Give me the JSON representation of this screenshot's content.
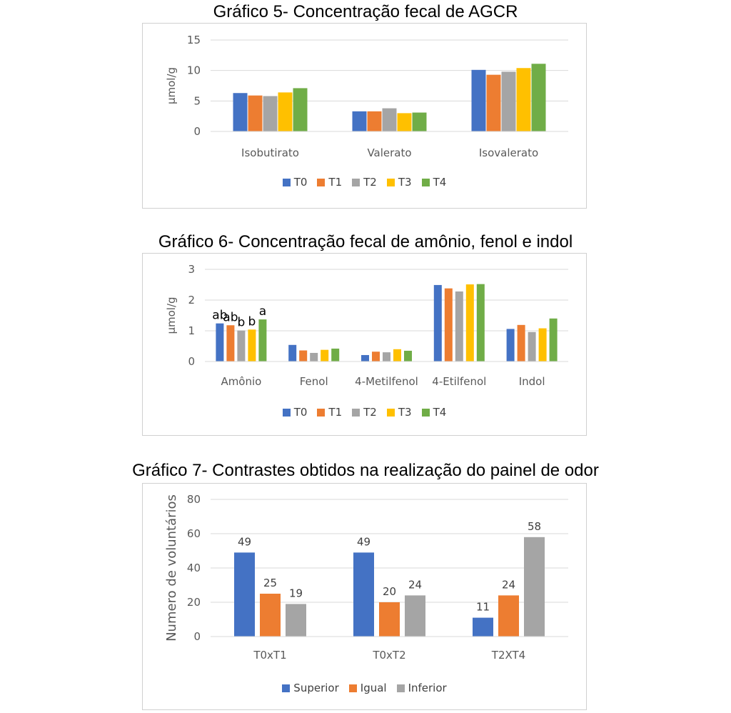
{
  "chart_data": [
    {
      "type": "bar",
      "title": "Gráfico 5- Concentração fecal de AGCR",
      "xlabel": "",
      "ylabel": "µmol/g",
      "ylim": [
        0,
        15
      ],
      "yticks": [
        0,
        5,
        10,
        15
      ],
      "grid": true,
      "legend_position": "bottom",
      "categories": [
        "Isobutirato",
        "Valerato",
        "Isovalerato"
      ],
      "series": [
        {
          "name": "T0",
          "color": "#4472C4",
          "values": [
            6.3,
            3.3,
            10.1
          ]
        },
        {
          "name": "T1",
          "color": "#ED7D31",
          "values": [
            5.9,
            3.3,
            9.3
          ]
        },
        {
          "name": "T2",
          "color": "#A5A5A5",
          "values": [
            5.8,
            3.8,
            9.8
          ]
        },
        {
          "name": "T3",
          "color": "#FFC000",
          "values": [
            6.4,
            3.0,
            10.4
          ]
        },
        {
          "name": "T4",
          "color": "#70AD47",
          "values": [
            7.1,
            3.1,
            11.1
          ]
        }
      ]
    },
    {
      "type": "bar",
      "title": "Gráfico 6- Concentração fecal de amônio, fenol e indol",
      "xlabel": "",
      "ylabel": "µmol/g",
      "ylim": [
        0,
        3
      ],
      "yticks": [
        0,
        1,
        2,
        3
      ],
      "grid": true,
      "legend_position": "bottom",
      "categories": [
        "Amônio",
        "Fenol",
        "4-Metilfenol",
        "4-Etilfenol",
        "Indol"
      ],
      "series": [
        {
          "name": "T0",
          "color": "#4472C4",
          "values": [
            1.24,
            0.54,
            0.21,
            2.49,
            1.06
          ]
        },
        {
          "name": "T1",
          "color": "#ED7D31",
          "values": [
            1.18,
            0.36,
            0.32,
            2.38,
            1.19
          ]
        },
        {
          "name": "T2",
          "color": "#A5A5A5",
          "values": [
            1.01,
            0.28,
            0.3,
            2.28,
            0.96
          ]
        },
        {
          "name": "T3",
          "color": "#FFC000",
          "values": [
            1.04,
            0.38,
            0.4,
            2.51,
            1.08
          ]
        },
        {
          "name": "T4",
          "color": "#70AD47",
          "values": [
            1.37,
            0.42,
            0.35,
            2.52,
            1.4
          ]
        }
      ],
      "annotations": [
        {
          "category": "Amônio",
          "series": "T0",
          "text": "ab"
        },
        {
          "category": "Amônio",
          "series": "T1",
          "text": "ab"
        },
        {
          "category": "Amônio",
          "series": "T2",
          "text": "b"
        },
        {
          "category": "Amônio",
          "series": "T3",
          "text": "b"
        },
        {
          "category": "Amônio",
          "series": "T4",
          "text": "a"
        }
      ]
    },
    {
      "type": "bar",
      "title": "Gráfico 7- Contrastes obtidos na realização do painel de odor",
      "xlabel": "",
      "ylabel": "Numero de voluntários",
      "ylim": [
        0,
        80
      ],
      "yticks": [
        0,
        20,
        40,
        60,
        80
      ],
      "grid": true,
      "legend_position": "bottom",
      "data_labels": true,
      "categories": [
        "T0xT1",
        "T0xT2",
        "T2XT4"
      ],
      "series": [
        {
          "name": "Superior",
          "color": "#4472C4",
          "values": [
            49,
            49,
            11
          ]
        },
        {
          "name": "Igual",
          "color": "#ED7D31",
          "values": [
            25,
            20,
            24
          ]
        },
        {
          "name": "Inferior",
          "color": "#A5A5A5",
          "values": [
            19,
            24,
            58
          ]
        }
      ]
    }
  ]
}
